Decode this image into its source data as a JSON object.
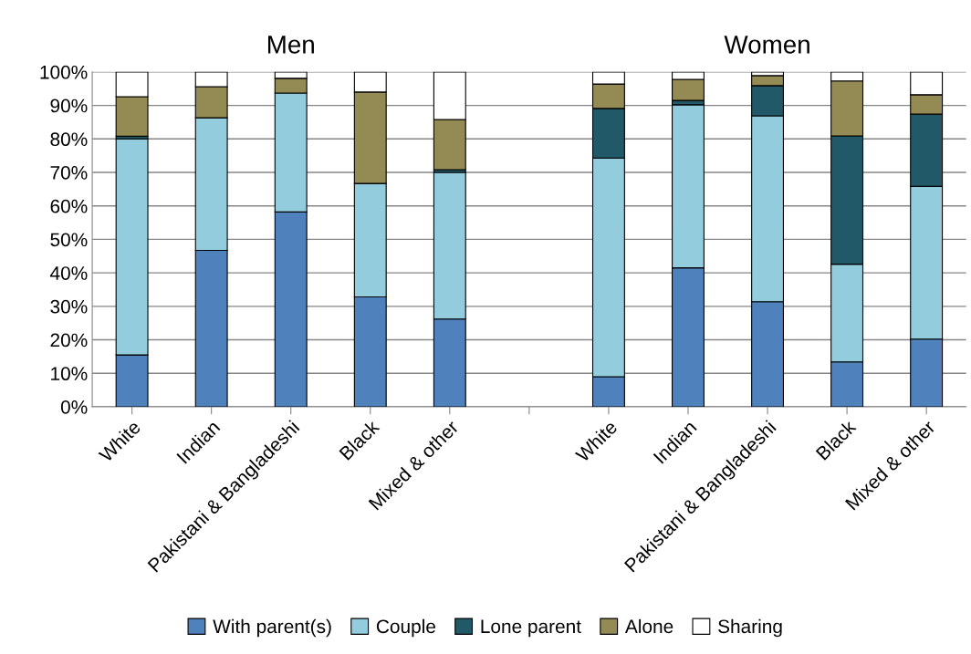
{
  "chart_data": {
    "type": "bar",
    "stacked": true,
    "categories": [
      "White",
      "Indian",
      "Pakistani & Bangladeshi",
      "Black",
      "Mixed & other",
      null,
      "White",
      "Indian",
      "Pakistani & Bangladeshi",
      "Black",
      "Mixed & other"
    ],
    "series": [
      {
        "name": "With parent(s)",
        "color": "#4f81bd",
        "values": [
          15.5,
          46.7,
          58.2,
          32.8,
          26.2,
          null,
          9.0,
          41.5,
          31.4,
          13.4,
          20.2
        ]
      },
      {
        "name": "Couple",
        "color": "#93cddd",
        "values": [
          64.5,
          39.6,
          35.5,
          33.9,
          43.8,
          null,
          65.3,
          48.7,
          55.5,
          29.2,
          45.6
        ]
      },
      {
        "name": "Lone parent",
        "color": "#215968",
        "values": [
          0.8,
          0,
          0,
          0,
          0.8,
          null,
          14.8,
          1.3,
          9.0,
          38.3,
          21.6
        ]
      },
      {
        "name": "Alone",
        "color": "#948a54",
        "values": [
          11.8,
          9.3,
          4.4,
          27.3,
          15.0,
          null,
          7.3,
          6.3,
          3.0,
          16.4,
          5.8
        ]
      },
      {
        "name": "Sharing",
        "color": "#ffffff",
        "values": [
          7.4,
          4.4,
          1.9,
          6.0,
          14.2,
          null,
          3.6,
          2.2,
          1.1,
          2.7,
          6.8
        ]
      }
    ],
    "ylim": [
      0,
      100
    ],
    "yticks": [
      {
        "value": 0,
        "label": "0%"
      },
      {
        "value": 10,
        "label": "10%"
      },
      {
        "value": 20,
        "label": "20%"
      },
      {
        "value": 30,
        "label": "30%"
      },
      {
        "value": 40,
        "label": "40%"
      },
      {
        "value": 50,
        "label": "50%"
      },
      {
        "value": 60,
        "label": "60%"
      },
      {
        "value": 70,
        "label": "70%"
      },
      {
        "value": 80,
        "label": "80%"
      },
      {
        "value": 90,
        "label": "90%"
      },
      {
        "value": 100,
        "label": "100%"
      }
    ],
    "annotations": [
      "Men",
      "Women"
    ],
    "grid": "y",
    "legend": "bottom"
  }
}
